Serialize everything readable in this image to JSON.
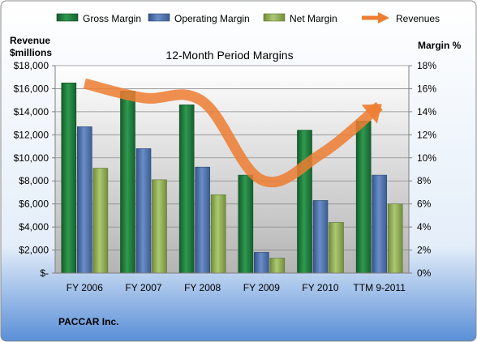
{
  "company": "PACCAR Inc.",
  "chart_data": {
    "type": "bar",
    "title": "12-Month Period Margins",
    "categories": [
      "FY 2006",
      "FY 2007",
      "FY 2008",
      "FY 2009",
      "FY 2010",
      "TTM 9-2011"
    ],
    "left_axis": {
      "label_line1": "Revenue",
      "label_line2": "$millions",
      "ylim": [
        0,
        18000
      ],
      "ticks": [
        0,
        2000,
        4000,
        6000,
        8000,
        10000,
        12000,
        14000,
        16000,
        18000
      ],
      "tick_labels": [
        "$-",
        "$2,000",
        "$4,000",
        "$6,000",
        "$8,000",
        "$10,000",
        "$12,000",
        "$14,000",
        "$16,000",
        "$18,000"
      ]
    },
    "right_axis": {
      "label": "Margin %",
      "ylim": [
        0,
        18
      ],
      "ticks": [
        0,
        2,
        4,
        6,
        8,
        10,
        12,
        14,
        16,
        18
      ],
      "tick_labels": [
        "0%",
        "2%",
        "4%",
        "6%",
        "8%",
        "10%",
        "12%",
        "14%",
        "16%",
        "18%"
      ]
    },
    "bar_series": [
      {
        "name": "Gross Margin",
        "color": "#1f7a3c",
        "values": [
          16.5,
          15.8,
          14.6,
          8.5,
          12.4,
          13.2
        ]
      },
      {
        "name": "Operating Margin",
        "color": "#4a6ea9",
        "values": [
          12.7,
          10.8,
          9.2,
          1.8,
          6.3,
          8.5
        ]
      },
      {
        "name": "Net Margin",
        "color": "#8fae4e",
        "values": [
          9.1,
          8.1,
          6.8,
          1.3,
          4.4,
          6.0
        ]
      }
    ],
    "line_series": {
      "name": "Revenues",
      "color": "#ed7d31",
      "values": [
        16450,
        15200,
        14900,
        8100,
        10300,
        14500
      ]
    },
    "legend_position": "top",
    "grid": true
  }
}
